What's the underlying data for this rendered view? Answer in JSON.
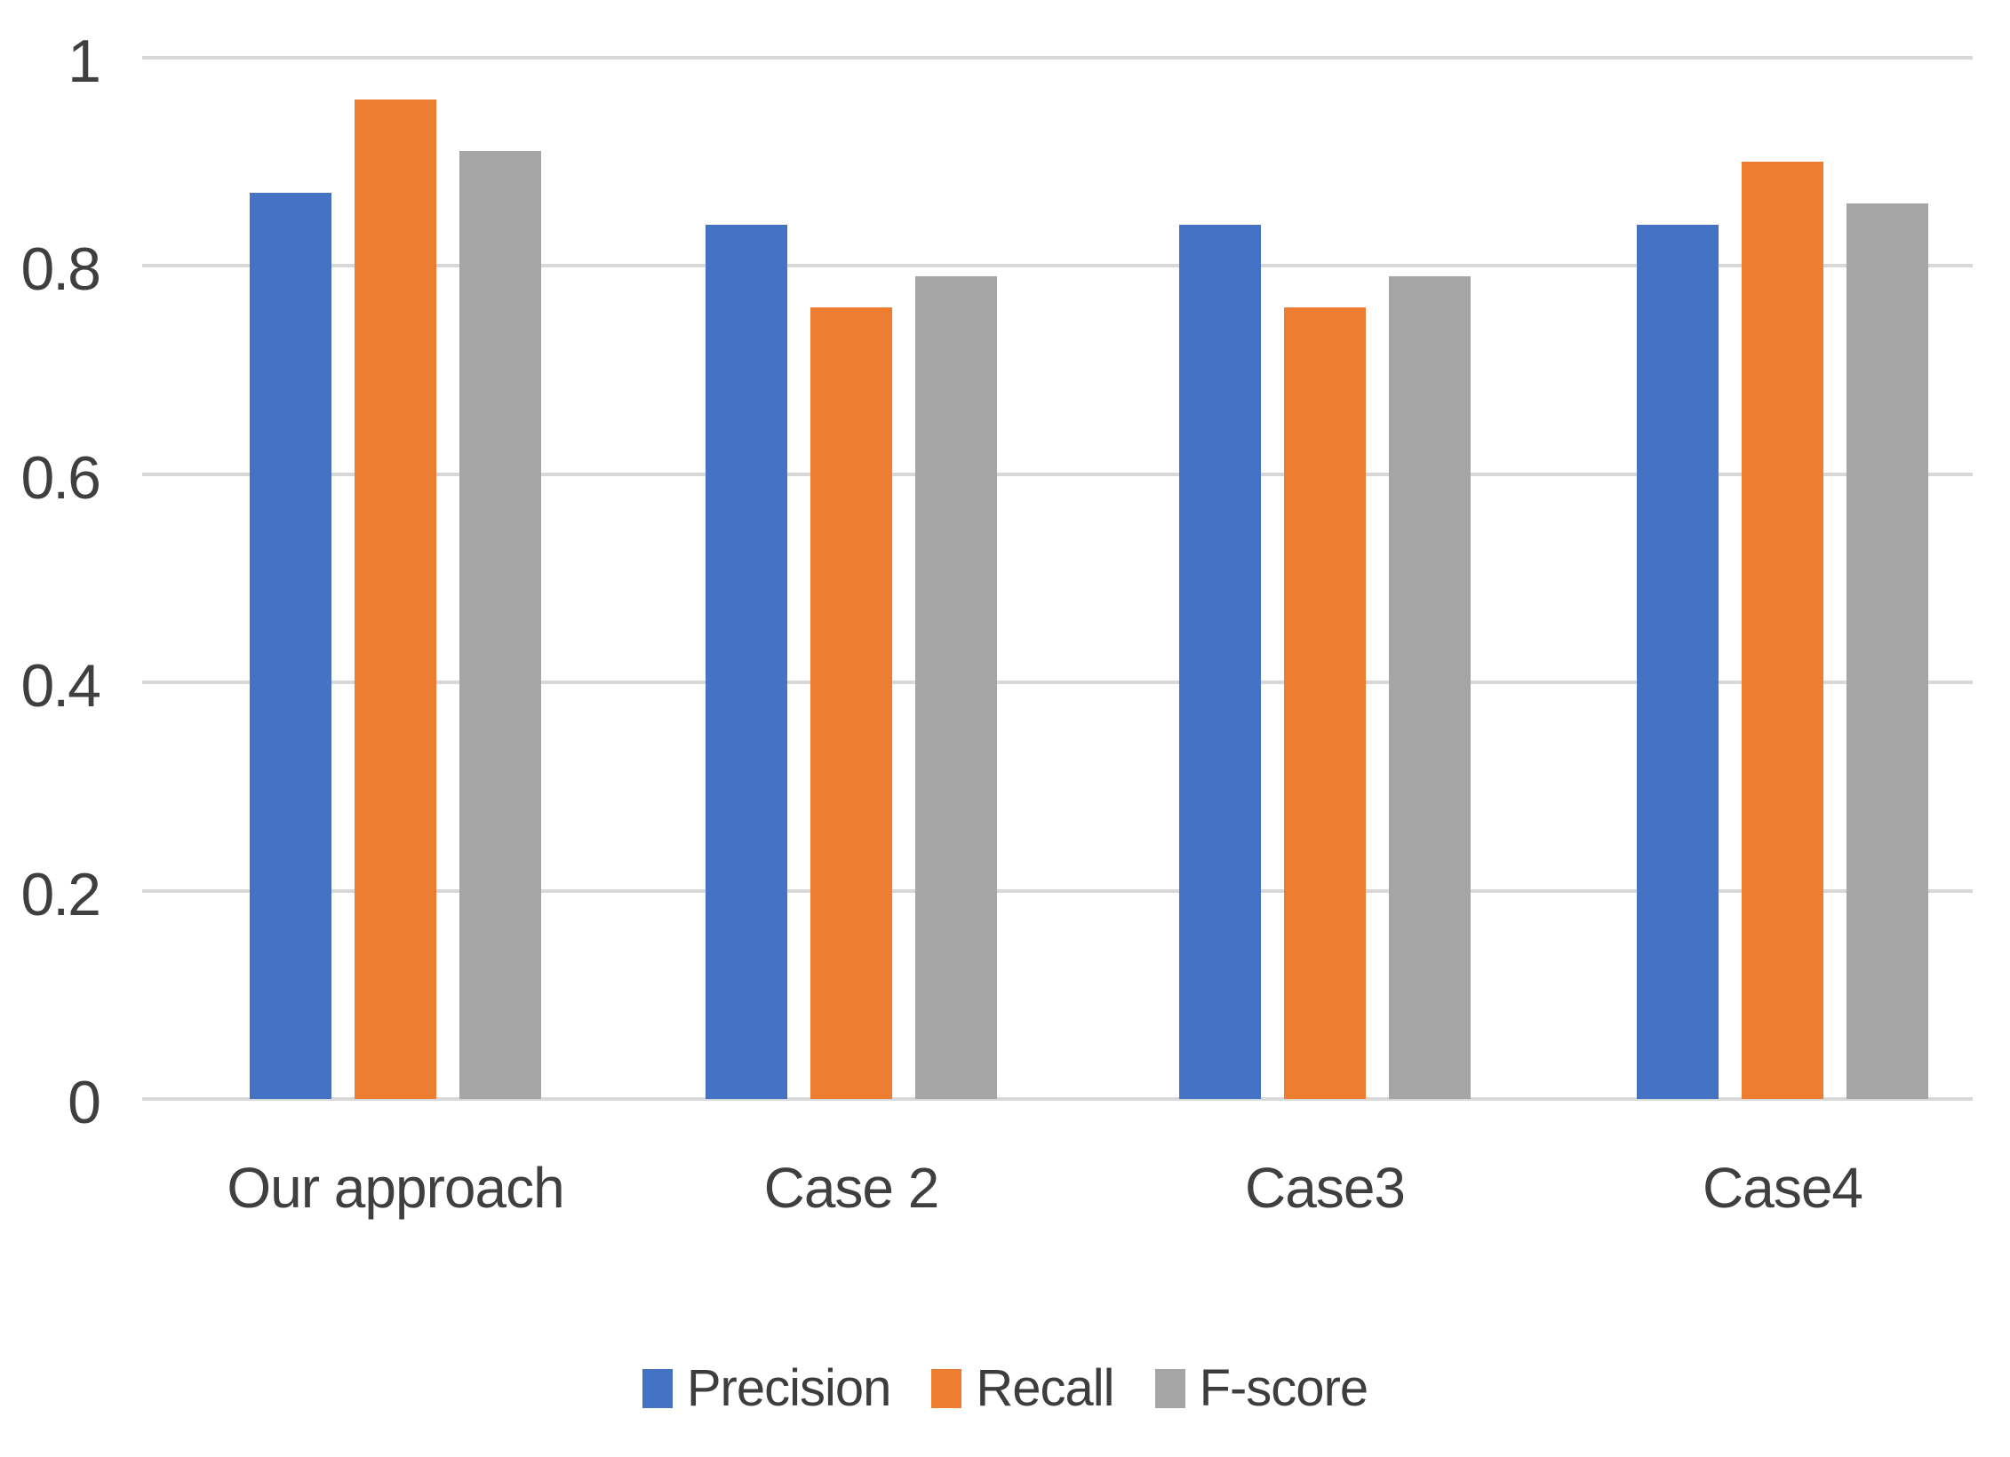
{
  "chart_data": {
    "type": "bar",
    "title": "",
    "xlabel": "",
    "ylabel": "",
    "categories": [
      "Our approach",
      "Case 2",
      "Case3",
      "Case4"
    ],
    "series": [
      {
        "name": "Precision",
        "color": "#4472c4",
        "values": [
          0.87,
          0.84,
          0.84,
          0.84
        ]
      },
      {
        "name": "Recall",
        "color": "#ed7d31",
        "values": [
          0.96,
          0.76,
          0.76,
          0.9
        ]
      },
      {
        "name": "F-score",
        "color": "#a5a5a5",
        "values": [
          0.91,
          0.79,
          0.79,
          0.86
        ]
      }
    ],
    "ylim": [
      0,
      1
    ],
    "y_ticks": [
      {
        "label": "0",
        "value": 0.0
      },
      {
        "label": "0.2",
        "value": 0.2
      },
      {
        "label": "0.4",
        "value": 0.4
      },
      {
        "label": "0.6",
        "value": 0.6
      },
      {
        "label": "0.8",
        "value": 0.8
      },
      {
        "label": "1",
        "value": 1.0
      }
    ],
    "grid": true,
    "legend_position": "bottom",
    "gridline_color": "#d8d8d8",
    "text_color": "#3f3f3f",
    "background_color": "#ffffff"
  }
}
